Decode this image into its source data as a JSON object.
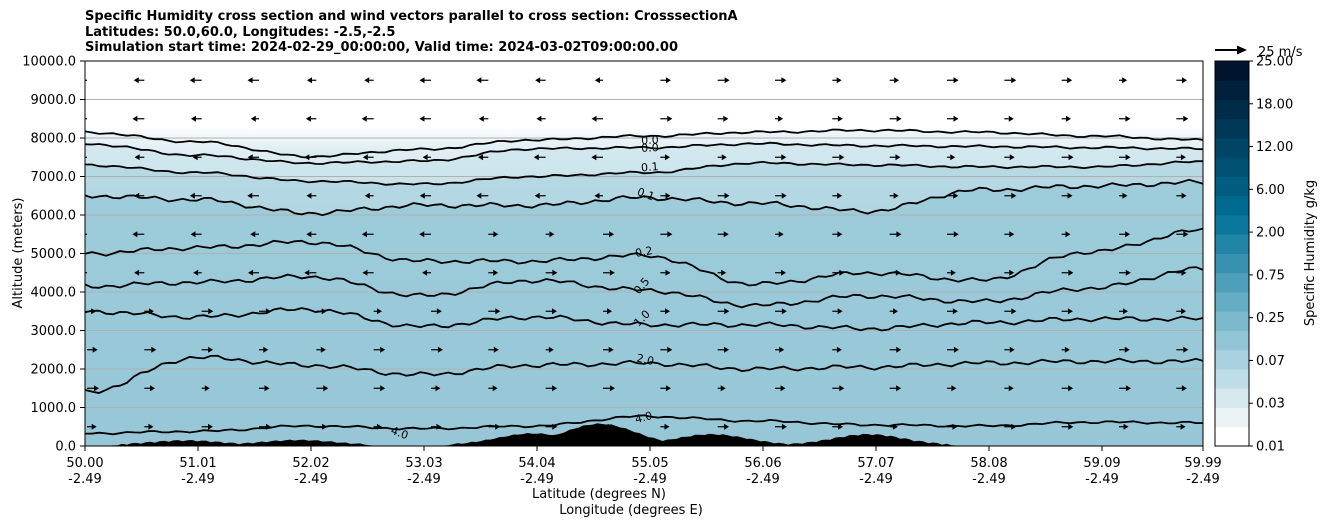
{
  "chart_data": {
    "type": "contour",
    "title_lines": [
      "Specific Humidity cross section and wind vectors parallel to cross section: CrosssectionA",
      "Latitudes: 50.0,60.0, Longitudes: -2.5,-2.5",
      "Simulation start time: 2024-02-29_00:00:00, Valid time: 2024-03-02T09:00:00.00"
    ],
    "xlabel_lat": "Latitude (degrees N)",
    "xlabel_lon": "Longitude (degrees E)",
    "ylabel": "Altitude (meters)",
    "xlim": [
      50.0,
      59.99
    ],
    "ylim": [
      0,
      10000
    ],
    "x_ticks": [
      {
        "lat": "50.00",
        "lon": "-2.49"
      },
      {
        "lat": "51.01",
        "lon": "-2.49"
      },
      {
        "lat": "52.02",
        "lon": "-2.49"
      },
      {
        "lat": "53.03",
        "lon": "-2.49"
      },
      {
        "lat": "54.04",
        "lon": "-2.49"
      },
      {
        "lat": "55.05",
        "lon": "-2.49"
      },
      {
        "lat": "56.06",
        "lon": "-2.49"
      },
      {
        "lat": "57.07",
        "lon": "-2.49"
      },
      {
        "lat": "58.08",
        "lon": "-2.49"
      },
      {
        "lat": "59.09",
        "lon": "-2.49"
      },
      {
        "lat": "59.99",
        "lon": "-2.49"
      }
    ],
    "y_ticks": [
      "0.0",
      "1000.0",
      "2000.0",
      "3000.0",
      "4000.0",
      "5000.0",
      "6000.0",
      "7000.0",
      "8000.0",
      "9000.0",
      "10000.0"
    ],
    "grid": "horizontal",
    "colorbar": {
      "label": "Specific Humidity g/kg",
      "tick_labels": [
        "0.01",
        "0.03",
        "0.07",
        "0.25",
        "0.75",
        "2.00",
        "6.00",
        "12.00",
        "18.00",
        "25.00"
      ],
      "colors": [
        "#ffffff",
        "#eaf3f6",
        "#d5e9ef",
        "#bfdde8",
        "#a9d1df",
        "#92c5d6",
        "#7cb9cd",
        "#65adc4",
        "#4f9fba",
        "#3891b0",
        "#2284a7",
        "#0b779d",
        "#006a90",
        "#005d82",
        "#005074",
        "#004466",
        "#003858",
        "#002c4a",
        "#00203c",
        "#00142e"
      ]
    },
    "contour_labels": [
      {
        "text": "0.0",
        "x_lat": 55.05,
        "z": 7850,
        "rot": -3
      },
      {
        "text": "0.0",
        "x_lat": 55.05,
        "z": 7650,
        "rot": -3
      },
      {
        "text": "0.1",
        "x_lat": 55.05,
        "z": 7150,
        "rot": -5
      },
      {
        "text": "0.1",
        "x_lat": 55.0,
        "z": 6450,
        "rot": 20
      },
      {
        "text": "0.2",
        "x_lat": 55.0,
        "z": 4950,
        "rot": -10
      },
      {
        "text": "0.5",
        "x_lat": 55.0,
        "z": 4100,
        "rot": -50
      },
      {
        "text": "1.0",
        "x_lat": 55.0,
        "z": 3250,
        "rot": -45
      },
      {
        "text": "2.0",
        "x_lat": 55.0,
        "z": 2150,
        "rot": 12
      },
      {
        "text": "4.0",
        "x_lat": 55.0,
        "z": 650,
        "rot": -15
      },
      {
        "text": "4.0",
        "x_lat": 52.8,
        "z": 250,
        "rot": 20
      }
    ],
    "contour_levels": [
      {
        "level": "0.0",
        "z": [
          8150,
          7900,
          7520,
          7700,
          7950,
          8050,
          8150,
          8200,
          8150,
          8050,
          7950
        ]
      },
      {
        "level": "0.0",
        "z": [
          7850,
          7550,
          7350,
          7400,
          7720,
          7750,
          7850,
          7800,
          7780,
          7750,
          7720
        ]
      },
      {
        "level": "0.1",
        "z": [
          7300,
          7100,
          6880,
          6800,
          7000,
          7100,
          7350,
          7300,
          7250,
          7250,
          7380
        ]
      },
      {
        "level": "0.1",
        "z": [
          6500,
          6400,
          6050,
          6250,
          6250,
          6450,
          6300,
          6100,
          6650,
          6750,
          6850
        ]
      },
      {
        "level": "0.2",
        "z": [
          5000,
          5150,
          5300,
          4800,
          4800,
          4950,
          4200,
          4500,
          4300,
          5050,
          5600
        ]
      },
      {
        "level": "0.5",
        "z": [
          4150,
          4250,
          4400,
          3900,
          4300,
          4050,
          3650,
          3900,
          3750,
          4100,
          4600
        ]
      },
      {
        "level": "1.0",
        "z": [
          3500,
          3350,
          3550,
          3100,
          3350,
          3150,
          3150,
          3050,
          3200,
          3300,
          3300
        ]
      },
      {
        "level": "2.0",
        "z": [
          1400,
          2300,
          2100,
          1850,
          2100,
          2150,
          2000,
          2050,
          2150,
          2200,
          2200
        ]
      },
      {
        "level": "4.0",
        "z": [
          330,
          380,
          520,
          450,
          520,
          770,
          650,
          550,
          520,
          620,
          600
        ]
      }
    ],
    "terrain_peaks": [
      {
        "x_lat": 50.9,
        "z": 120
      },
      {
        "x_lat": 51.9,
        "z": 130
      },
      {
        "x_lat": 54.0,
        "z": 300
      },
      {
        "x_lat": 54.6,
        "z": 550
      },
      {
        "x_lat": 55.6,
        "z": 280
      },
      {
        "x_lat": 57.0,
        "z": 280
      }
    ],
    "wind_key": {
      "label": "25 m/s"
    }
  }
}
